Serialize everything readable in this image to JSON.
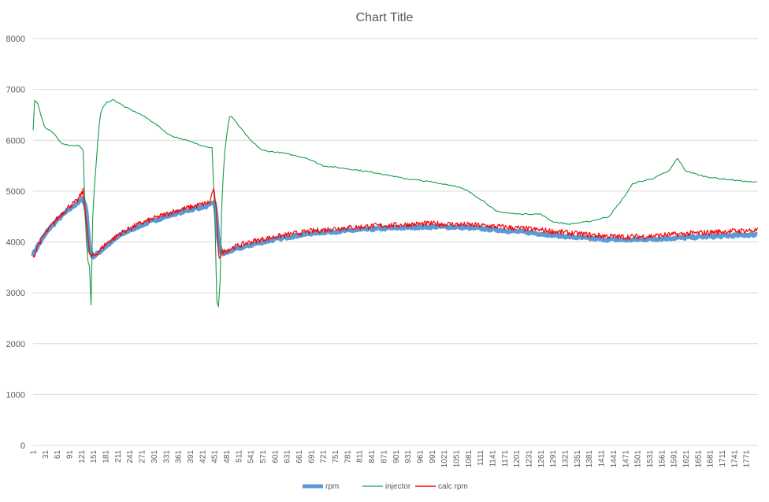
{
  "chart_data": {
    "type": "line",
    "title": "Chart Title",
    "xlabel": "",
    "ylabel": "",
    "ylim": [
      0,
      8000
    ],
    "yticks": [
      0,
      1000,
      2000,
      3000,
      4000,
      5000,
      6000,
      7000,
      8000
    ],
    "xlim": [
      1,
      1800
    ],
    "xticks": [
      1,
      31,
      61,
      91,
      121,
      151,
      181,
      211,
      241,
      271,
      301,
      331,
      361,
      391,
      421,
      451,
      481,
      511,
      541,
      571,
      601,
      631,
      661,
      691,
      721,
      751,
      781,
      811,
      841,
      871,
      901,
      931,
      961,
      991,
      1021,
      1051,
      1081,
      1111,
      1141,
      1171,
      1201,
      1231,
      1261,
      1291,
      1321,
      1351,
      1381,
      1411,
      1441,
      1471,
      1501,
      1531,
      1561,
      1591,
      1621,
      1651,
      1681,
      1711,
      1741,
      1771
    ],
    "grid": true,
    "legend_position": "bottom",
    "series": [
      {
        "name": "rpm",
        "color": "#5b9bd5",
        "points": [
          [
            1,
            3750
          ],
          [
            15,
            3950
          ],
          [
            40,
            4250
          ],
          [
            70,
            4500
          ],
          [
            100,
            4700
          ],
          [
            125,
            4850
          ],
          [
            132,
            4700
          ],
          [
            141,
            3850
          ],
          [
            150,
            3700
          ],
          [
            180,
            3900
          ],
          [
            220,
            4150
          ],
          [
            260,
            4300
          ],
          [
            300,
            4420
          ],
          [
            350,
            4550
          ],
          [
            400,
            4650
          ],
          [
            440,
            4720
          ],
          [
            452,
            4800
          ],
          [
            460,
            4100
          ],
          [
            468,
            3750
          ],
          [
            500,
            3850
          ],
          [
            560,
            3980
          ],
          [
            620,
            4080
          ],
          [
            700,
            4180
          ],
          [
            780,
            4220
          ],
          [
            860,
            4260
          ],
          [
            940,
            4290
          ],
          [
            1000,
            4300
          ],
          [
            1060,
            4290
          ],
          [
            1120,
            4260
          ],
          [
            1180,
            4220
          ],
          [
            1240,
            4180
          ],
          [
            1300,
            4130
          ],
          [
            1360,
            4080
          ],
          [
            1420,
            4050
          ],
          [
            1480,
            4040
          ],
          [
            1540,
            4060
          ],
          [
            1600,
            4080
          ],
          [
            1660,
            4100
          ],
          [
            1720,
            4120
          ],
          [
            1780,
            4140
          ],
          [
            1800,
            4150
          ]
        ]
      },
      {
        "name": "injector",
        "color": "#1a9a4a",
        "points": [
          [
            1,
            6200
          ],
          [
            3,
            6800
          ],
          [
            12,
            6750
          ],
          [
            20,
            6500
          ],
          [
            30,
            6250
          ],
          [
            50,
            6150
          ],
          [
            70,
            5950
          ],
          [
            90,
            5900
          ],
          [
            115,
            5900
          ],
          [
            125,
            5800
          ],
          [
            132,
            4200
          ],
          [
            136,
            3600
          ],
          [
            140,
            3700
          ],
          [
            145,
            2750
          ],
          [
            149,
            4500
          ],
          [
            154,
            5200
          ],
          [
            160,
            5800
          ],
          [
            165,
            6300
          ],
          [
            170,
            6600
          ],
          [
            185,
            6750
          ],
          [
            200,
            6800
          ],
          [
            230,
            6650
          ],
          [
            270,
            6500
          ],
          [
            300,
            6350
          ],
          [
            340,
            6100
          ],
          [
            380,
            6000
          ],
          [
            420,
            5900
          ],
          [
            445,
            5850
          ],
          [
            452,
            4600
          ],
          [
            456,
            2900
          ],
          [
            460,
            2600
          ],
          [
            465,
            3200
          ],
          [
            470,
            5000
          ],
          [
            478,
            5900
          ],
          [
            485,
            6300
          ],
          [
            490,
            6500
          ],
          [
            510,
            6300
          ],
          [
            540,
            6000
          ],
          [
            570,
            5800
          ],
          [
            620,
            5750
          ],
          [
            680,
            5650
          ],
          [
            720,
            5500
          ],
          [
            800,
            5420
          ],
          [
            860,
            5350
          ],
          [
            920,
            5250
          ],
          [
            990,
            5180
          ],
          [
            1050,
            5100
          ],
          [
            1080,
            5000
          ],
          [
            1120,
            4800
          ],
          [
            1150,
            4600
          ],
          [
            1200,
            4550
          ],
          [
            1260,
            4550
          ],
          [
            1290,
            4400
          ],
          [
            1330,
            4350
          ],
          [
            1380,
            4400
          ],
          [
            1430,
            4500
          ],
          [
            1460,
            4800
          ],
          [
            1490,
            5150
          ],
          [
            1540,
            5250
          ],
          [
            1580,
            5400
          ],
          [
            1600,
            5650
          ],
          [
            1620,
            5400
          ],
          [
            1660,
            5300
          ],
          [
            1700,
            5250
          ],
          [
            1760,
            5200
          ],
          [
            1790,
            5170
          ],
          [
            1800,
            5200
          ]
        ]
      },
      {
        "name": "calc rpm",
        "color": "#ff0000",
        "points": [
          [
            1,
            3650
          ],
          [
            10,
            3900
          ],
          [
            30,
            4150
          ],
          [
            60,
            4450
          ],
          [
            90,
            4700
          ],
          [
            110,
            4800
          ],
          [
            125,
            5000
          ],
          [
            128,
            4750
          ],
          [
            134,
            4400
          ],
          [
            140,
            3800
          ],
          [
            146,
            3700
          ],
          [
            160,
            3780
          ],
          [
            180,
            3950
          ],
          [
            220,
            4180
          ],
          [
            260,
            4340
          ],
          [
            300,
            4460
          ],
          [
            350,
            4600
          ],
          [
            400,
            4700
          ],
          [
            440,
            4780
          ],
          [
            448,
            5050
          ],
          [
            454,
            4800
          ],
          [
            462,
            3700
          ],
          [
            470,
            3800
          ],
          [
            500,
            3900
          ],
          [
            540,
            4000
          ],
          [
            600,
            4100
          ],
          [
            680,
            4200
          ],
          [
            760,
            4270
          ],
          [
            840,
            4310
          ],
          [
            920,
            4340
          ],
          [
            980,
            4360
          ],
          [
            1040,
            4350
          ],
          [
            1100,
            4330
          ],
          [
            1160,
            4300
          ],
          [
            1220,
            4260
          ],
          [
            1280,
            4220
          ],
          [
            1340,
            4170
          ],
          [
            1400,
            4130
          ],
          [
            1460,
            4100
          ],
          [
            1520,
            4110
          ],
          [
            1580,
            4140
          ],
          [
            1640,
            4170
          ],
          [
            1700,
            4200
          ],
          [
            1760,
            4220
          ],
          [
            1800,
            4230
          ]
        ]
      }
    ]
  }
}
